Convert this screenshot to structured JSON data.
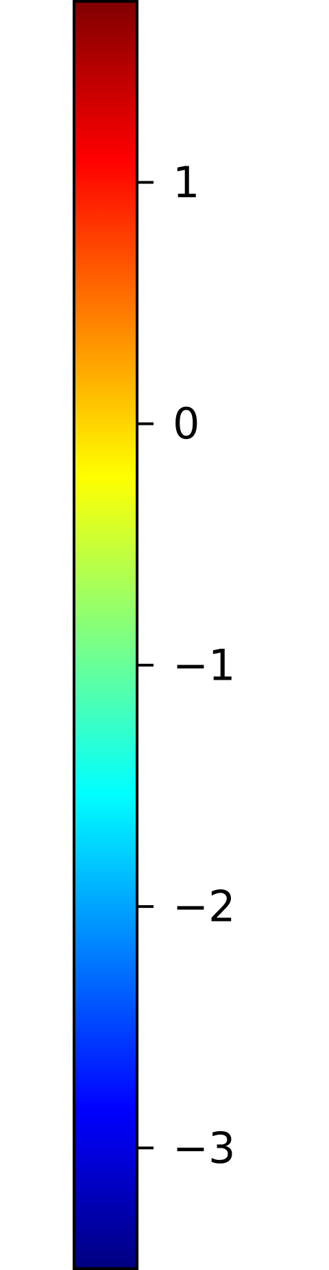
{
  "chart_data": {
    "type": "colorbar",
    "colormap": "jet",
    "orientation": "vertical",
    "range": [
      -3.5,
      1.75
    ],
    "ticks": [
      1,
      0,
      -1,
      -2,
      -3
    ],
    "tick_labels": [
      "1",
      "0",
      "−1",
      "−2",
      "−3"
    ],
    "colors": {
      "frame": "#000000",
      "tick": "#000000",
      "label": "#000000",
      "jet_stops": [
        "#000080",
        "#0000ff",
        "#0080ff",
        "#00ffff",
        "#80ff80",
        "#ffff00",
        "#ff8000",
        "#ff0000",
        "#800000"
      ]
    }
  }
}
